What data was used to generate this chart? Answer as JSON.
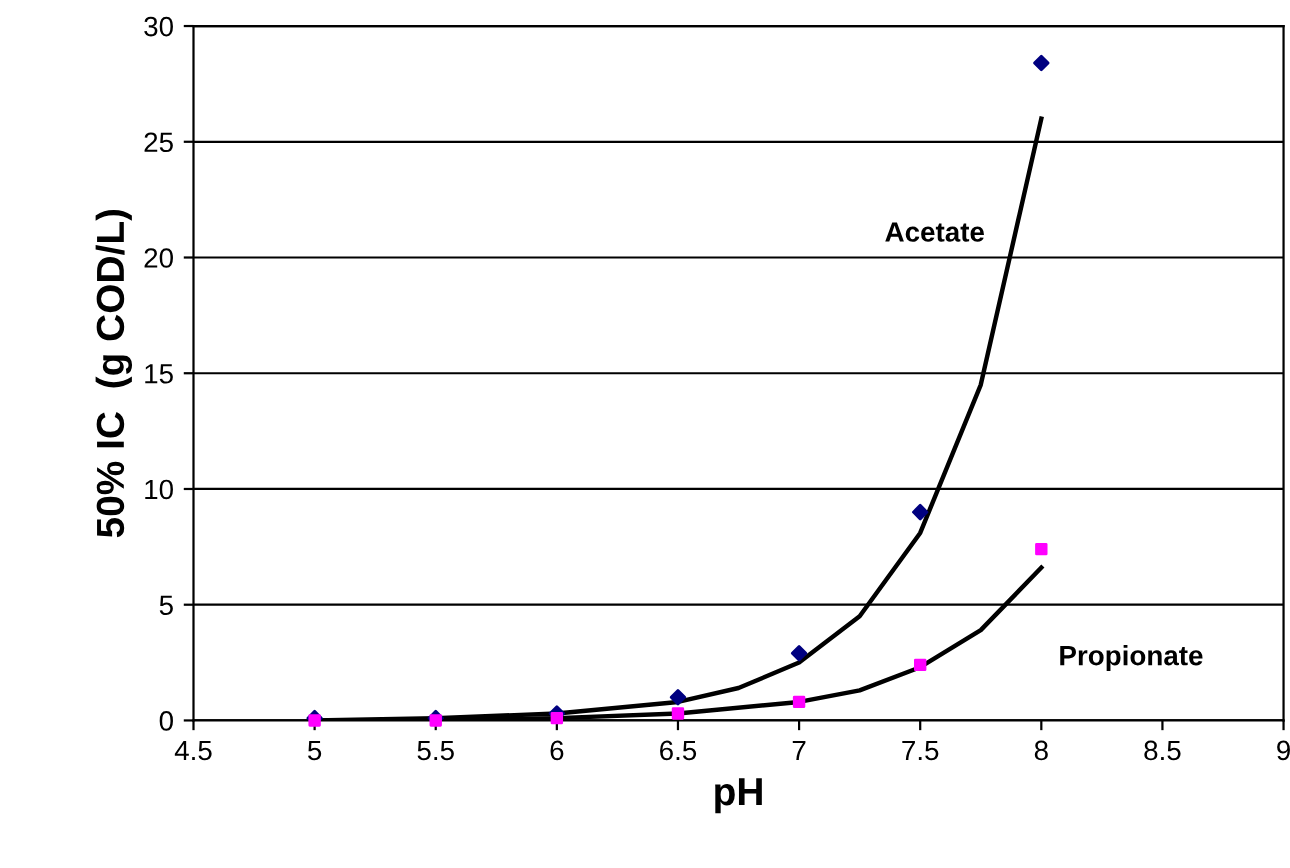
{
  "chart_data": {
    "type": "scatter",
    "xlabel": "pH",
    "ylabel": "50% IC  (g COD/L)",
    "xlim": [
      4.5,
      9
    ],
    "xticks": [
      4.5,
      5,
      5.5,
      6,
      6.5,
      7,
      7.5,
      8,
      8.5,
      9
    ],
    "ylim": [
      0,
      30
    ],
    "yticks": [
      0,
      5,
      10,
      15,
      20,
      25,
      30
    ],
    "grid": "y",
    "annotations": [
      "Acetate",
      "Propionate"
    ],
    "series": [
      {
        "marker": "diamond",
        "color": "#000080",
        "x": [
          5,
          5.5,
          6,
          6.5,
          7,
          7.5,
          8
        ],
        "values": [
          0.1,
          0.1,
          0.3,
          1.0,
          2.9,
          9.0,
          28.4
        ]
      },
      {
        "marker": "square",
        "color": "#ff00ff",
        "x": [
          5,
          5.5,
          6,
          6.5,
          7,
          7.5,
          8
        ],
        "values": [
          0.0,
          0.0,
          0.1,
          0.3,
          0.8,
          2.4,
          7.4
        ]
      },
      {
        "type": "line",
        "color": "#000000",
        "x": [
          5,
          5.5,
          6,
          6.5,
          6.75,
          7,
          7.25,
          7.5,
          7.75,
          8
        ],
        "values": [
          0.0,
          0.1,
          0.3,
          0.8,
          1.4,
          2.5,
          4.5,
          8.1,
          14.5,
          26
        ]
      },
      {
        "type": "line",
        "color": "#000000",
        "x": [
          5,
          5.5,
          6,
          6.5,
          7,
          7.25,
          7.5,
          7.75,
          8
        ],
        "values": [
          0.0,
          0.0,
          0.1,
          0.3,
          0.8,
          1.3,
          2.3,
          3.9,
          6.6
        ]
      }
    ]
  }
}
